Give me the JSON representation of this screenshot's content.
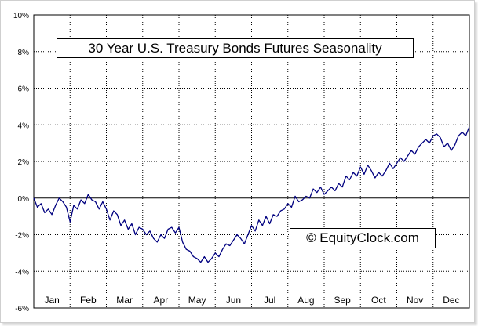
{
  "chart_data": {
    "type": "line",
    "title": "30 Year U.S. Treasury Bonds Futures Seasonality",
    "watermark": "© EquityClock.com",
    "xlabel": "",
    "ylabel": "",
    "categories": [
      "Jan",
      "Feb",
      "Mar",
      "Apr",
      "May",
      "Jun",
      "Jul",
      "Aug",
      "Sep",
      "Oct",
      "Nov",
      "Dec"
    ],
    "y_ticks": [
      -6,
      -4,
      -2,
      0,
      2,
      4,
      6,
      8,
      10
    ],
    "y_tick_labels": [
      "-6%",
      "-4%",
      "-2%",
      "0%",
      "2%",
      "4%",
      "6%",
      "8%",
      "10%"
    ],
    "ylim": [
      -6,
      10
    ],
    "xlim": [
      0,
      12
    ],
    "grid": true,
    "colors": {
      "line": "#000080",
      "zero_line": "#000000",
      "grid": "#000000"
    },
    "series": [
      {
        "values": [
          [
            0.0,
            0.0
          ],
          [
            0.1,
            -0.5
          ],
          [
            0.2,
            -0.3
          ],
          [
            0.3,
            -0.8
          ],
          [
            0.4,
            -0.6
          ],
          [
            0.5,
            -0.9
          ],
          [
            0.6,
            -0.4
          ],
          [
            0.7,
            0.0
          ],
          [
            0.8,
            -0.2
          ],
          [
            0.9,
            -0.5
          ],
          [
            1.0,
            -1.3
          ],
          [
            1.1,
            -0.4
          ],
          [
            1.2,
            -0.6
          ],
          [
            1.3,
            -0.1
          ],
          [
            1.4,
            -0.3
          ],
          [
            1.5,
            0.2
          ],
          [
            1.6,
            -0.1
          ],
          [
            1.7,
            -0.2
          ],
          [
            1.8,
            -0.6
          ],
          [
            1.9,
            -0.2
          ],
          [
            2.0,
            -0.6
          ],
          [
            2.1,
            -1.2
          ],
          [
            2.2,
            -0.7
          ],
          [
            2.3,
            -0.9
          ],
          [
            2.4,
            -1.5
          ],
          [
            2.5,
            -1.2
          ],
          [
            2.6,
            -1.7
          ],
          [
            2.7,
            -1.4
          ],
          [
            2.8,
            -2.0
          ],
          [
            2.9,
            -1.6
          ],
          [
            3.0,
            -1.7
          ],
          [
            3.1,
            -2.0
          ],
          [
            3.2,
            -1.8
          ],
          [
            3.3,
            -2.2
          ],
          [
            3.4,
            -2.4
          ],
          [
            3.5,
            -2.0
          ],
          [
            3.6,
            -2.2
          ],
          [
            3.7,
            -1.7
          ],
          [
            3.8,
            -1.6
          ],
          [
            3.9,
            -1.9
          ],
          [
            4.0,
            -1.6
          ],
          [
            4.05,
            -2.0
          ],
          [
            4.1,
            -2.4
          ],
          [
            4.2,
            -2.8
          ],
          [
            4.3,
            -2.9
          ],
          [
            4.4,
            -3.2
          ],
          [
            4.5,
            -3.3
          ],
          [
            4.6,
            -3.5
          ],
          [
            4.7,
            -3.2
          ],
          [
            4.8,
            -3.5
          ],
          [
            4.9,
            -3.3
          ],
          [
            5.0,
            -3.0
          ],
          [
            5.1,
            -3.2
          ],
          [
            5.2,
            -2.8
          ],
          [
            5.3,
            -2.5
          ],
          [
            5.4,
            -2.6
          ],
          [
            5.5,
            -2.3
          ],
          [
            5.6,
            -2.0
          ],
          [
            5.7,
            -2.2
          ],
          [
            5.8,
            -2.5
          ],
          [
            5.9,
            -2.0
          ],
          [
            6.0,
            -1.5
          ],
          [
            6.1,
            -1.8
          ],
          [
            6.2,
            -1.2
          ],
          [
            6.3,
            -1.5
          ],
          [
            6.4,
            -1.0
          ],
          [
            6.5,
            -1.4
          ],
          [
            6.6,
            -0.9
          ],
          [
            6.7,
            -1.0
          ],
          [
            6.8,
            -0.7
          ],
          [
            6.9,
            -0.6
          ],
          [
            7.0,
            -0.3
          ],
          [
            7.1,
            -0.5
          ],
          [
            7.2,
            0.1
          ],
          [
            7.3,
            -0.2
          ],
          [
            7.4,
            -0.1
          ],
          [
            7.5,
            0.1
          ],
          [
            7.6,
            0.0
          ],
          [
            7.7,
            0.5
          ],
          [
            7.8,
            0.3
          ],
          [
            7.9,
            0.6
          ],
          [
            8.0,
            0.2
          ],
          [
            8.1,
            0.4
          ],
          [
            8.2,
            0.6
          ],
          [
            8.3,
            0.4
          ],
          [
            8.4,
            0.8
          ],
          [
            8.5,
            0.6
          ],
          [
            8.6,
            1.2
          ],
          [
            8.7,
            1.0
          ],
          [
            8.8,
            1.4
          ],
          [
            8.9,
            1.2
          ],
          [
            9.0,
            1.7
          ],
          [
            9.1,
            1.3
          ],
          [
            9.2,
            1.8
          ],
          [
            9.3,
            1.5
          ],
          [
            9.4,
            1.1
          ],
          [
            9.5,
            1.4
          ],
          [
            9.6,
            1.2
          ],
          [
            9.7,
            1.5
          ],
          [
            9.8,
            1.9
          ],
          [
            9.9,
            1.6
          ],
          [
            10.0,
            1.9
          ],
          [
            10.1,
            2.2
          ],
          [
            10.2,
            2.0
          ],
          [
            10.3,
            2.3
          ],
          [
            10.4,
            2.6
          ],
          [
            10.5,
            2.4
          ],
          [
            10.6,
            2.8
          ],
          [
            10.7,
            3.0
          ],
          [
            10.8,
            3.2
          ],
          [
            10.9,
            3.0
          ],
          [
            11.0,
            3.4
          ],
          [
            11.1,
            3.5
          ],
          [
            11.2,
            3.3
          ],
          [
            11.3,
            2.8
          ],
          [
            11.4,
            3.0
          ],
          [
            11.5,
            2.6
          ],
          [
            11.6,
            2.9
          ],
          [
            11.7,
            3.4
          ],
          [
            11.8,
            3.6
          ],
          [
            11.9,
            3.4
          ],
          [
            12.0,
            3.9
          ]
        ]
      }
    ]
  }
}
